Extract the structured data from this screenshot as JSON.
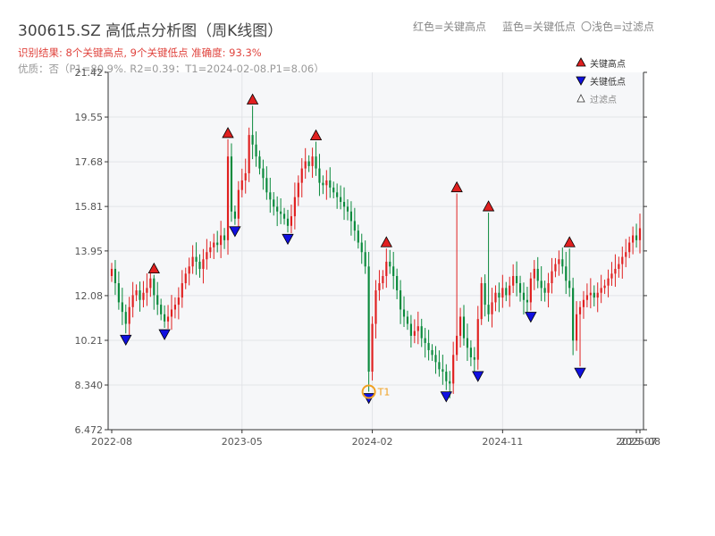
{
  "header": {
    "title": "300615.SZ 高低点分析图（周K线图）",
    "result_line": "识别结果: 8个关键高点, 9个关键低点  准确度: 93.3%",
    "quality_line": "优质：否（P1=80.9%, R2=0.39；T1=2024-02-08,P1=8.06）",
    "top_legend_red": "红色=关键高点",
    "top_legend_blue": "蓝色=关键低点",
    "top_legend_light": "〇浅色=过滤点"
  },
  "legend": {
    "high_label": "关键高点",
    "low_label": "关键低点",
    "filtered_label": "过滤点"
  },
  "colors": {
    "up": "#e02020",
    "down": "#0a8a3c",
    "high_marker": "#e02020",
    "low_marker": "#1010e0",
    "t1": "#f0a020",
    "plot_bg": "#f6f7f9"
  },
  "chart_data": {
    "type": "candlestick",
    "title": "300615.SZ 高低点分析图（周K线图）",
    "xlabel": "",
    "ylabel": "",
    "ylim": [
      6.472,
      21.42
    ],
    "y_ticks": [
      "6.472",
      "8.340",
      "10.21",
      "12.08",
      "13.95",
      "15.81",
      "17.68",
      "19.55",
      "21.42"
    ],
    "x_ticks": [
      "2022-08",
      "2023-05",
      "2024-02",
      "2024-11",
      "2025-07",
      "2025-08"
    ],
    "x_range": [
      0,
      150
    ],
    "x_tick_positions": [
      0,
      37,
      74,
      111,
      149,
      150
    ],
    "grid": true,
    "legend_position": "top-right",
    "key_highs": [
      {
        "x": 12,
        "price": 12.95
      },
      {
        "x": 33,
        "price": 18.62
      },
      {
        "x": 40,
        "price": 20.02
      },
      {
        "x": 58,
        "price": 18.52
      },
      {
        "x": 78,
        "price": 14.05
      },
      {
        "x": 98,
        "price": 16.35
      },
      {
        "x": 107,
        "price": 15.55
      },
      {
        "x": 130,
        "price": 14.05
      }
    ],
    "key_lows": [
      {
        "x": 4,
        "price": 10.5
      },
      {
        "x": 15,
        "price": 10.73
      },
      {
        "x": 35,
        "price": 15.04
      },
      {
        "x": 50,
        "price": 14.72
      },
      {
        "x": 73,
        "price": 8.06
      },
      {
        "x": 95,
        "price": 8.13
      },
      {
        "x": 104,
        "price": 8.98
      },
      {
        "x": 119,
        "price": 11.46
      },
      {
        "x": 133,
        "price": 9.12
      }
    ],
    "t1": {
      "x": 73,
      "price": 8.06,
      "label": "T1"
    },
    "closes": [
      13.2,
      12.6,
      11.8,
      11.4,
      10.9,
      11.6,
      12.1,
      12.3,
      11.9,
      12.2,
      12.4,
      12.8,
      12.1,
      11.7,
      11.3,
      11.0,
      11.2,
      11.5,
      11.7,
      12.0,
      12.6,
      13.0,
      13.3,
      13.7,
      13.5,
      13.2,
      13.6,
      13.9,
      14.1,
      14.3,
      14.2,
      14.6,
      14.4,
      17.9,
      15.6,
      15.3,
      16.5,
      16.9,
      17.2,
      18.8,
      18.4,
      17.9,
      17.4,
      17.0,
      16.4,
      16.1,
      15.8,
      15.6,
      15.5,
      15.3,
      15.0,
      15.4,
      16.2,
      16.8,
      17.4,
      17.7,
      17.5,
      17.9,
      17.4,
      16.8,
      16.7,
      16.9,
      16.6,
      16.4,
      16.2,
      16.0,
      15.8,
      15.6,
      15.2,
      14.8,
      14.3,
      13.9,
      13.3,
      8.9,
      10.9,
      12.3,
      12.6,
      12.9,
      13.5,
      13.3,
      12.9,
      12.3,
      11.5,
      11.2,
      10.9,
      10.4,
      10.6,
      10.8,
      10.3,
      10.1,
      9.8,
      9.6,
      9.3,
      9.0,
      8.9,
      8.5,
      8.4,
      9.6,
      10.4,
      11.2,
      10.3,
      9.9,
      9.5,
      9.4,
      11.1,
      12.6,
      11.7,
      11.3,
      11.8,
      12.2,
      12.0,
      12.4,
      12.1,
      12.5,
      12.9,
      12.6,
      12.2,
      11.9,
      11.8,
      12.8,
      13.2,
      12.7,
      12.4,
      12.2,
      12.6,
      13.1,
      13.4,
      13.6,
      13.3,
      12.7,
      12.4,
      10.2,
      11.3,
      11.6,
      11.9,
      12.1,
      12.2,
      12.0,
      12.2,
      12.4,
      12.5,
      12.8,
      13.0,
      13.2,
      13.4,
      13.7,
      13.9,
      14.3,
      14.6,
      14.4,
      14.9
    ]
  }
}
